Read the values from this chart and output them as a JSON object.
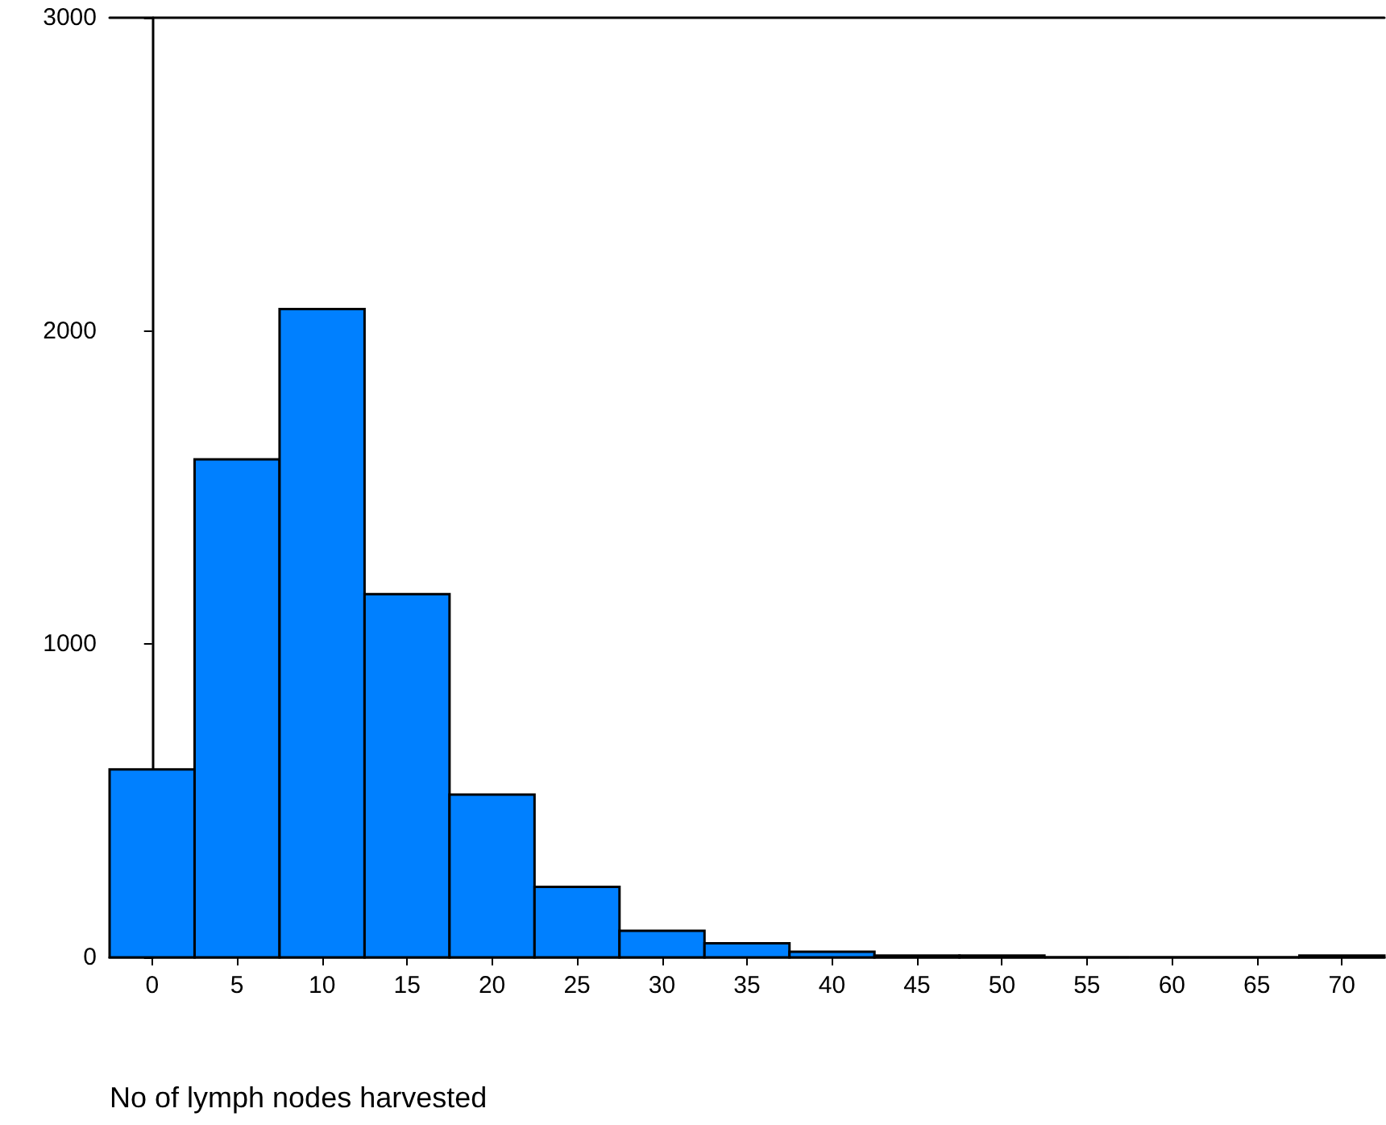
{
  "chart_data": {
    "type": "histogram",
    "xlabel": "No of lymph nodes harvested",
    "bins": [
      -2.5,
      2.5,
      7.5,
      12.5,
      17.5,
      22.5,
      27.5,
      32.5,
      37.5,
      42.5,
      47.5,
      52.5,
      57.5,
      62.5,
      67.5,
      72.5
    ],
    "values": [
      600,
      1590,
      2070,
      1160,
      520,
      225,
      85,
      45,
      18,
      6,
      6,
      0,
      0,
      0,
      6
    ],
    "color": "#0080ff",
    "xlim": [
      -2.5,
      72.5
    ],
    "xticks": [
      0,
      5,
      10,
      15,
      20,
      25,
      30,
      35,
      40,
      45,
      50,
      55,
      60,
      65,
      70
    ],
    "ylim": [
      0,
      3000
    ],
    "yticks": [
      0,
      1000,
      2000,
      3000
    ],
    "grid": false
  }
}
